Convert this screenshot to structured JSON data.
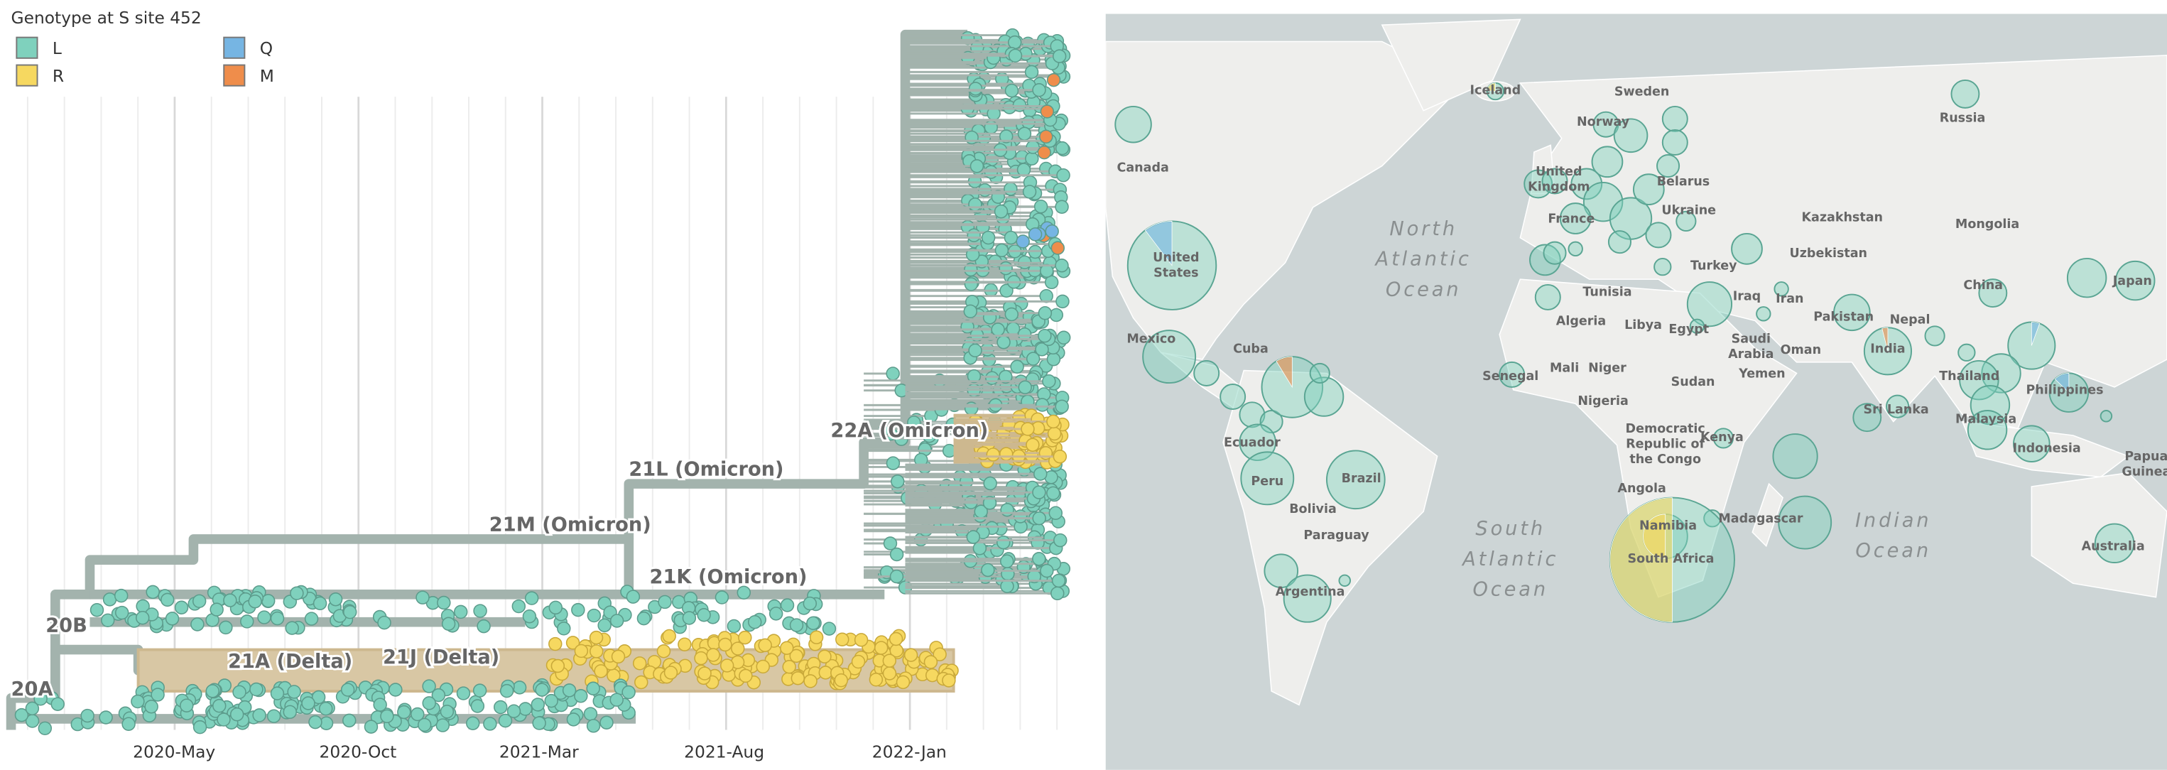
{
  "legend": {
    "title": "Genotype at S site 452",
    "items": [
      {
        "label": "L",
        "color": "#7fd1bd"
      },
      {
        "label": "R",
        "color": "#f6d860"
      },
      {
        "label": "Q",
        "color": "#76b5e3"
      },
      {
        "label": "M",
        "color": "#ef8d4b"
      }
    ]
  },
  "tree": {
    "clades": [
      "20A",
      "20B",
      "21A (Delta)",
      "21J (Delta)",
      "21M (Omicron)",
      "21L (Omicron)",
      "21K (Omicron)",
      "22A (Omicron)"
    ],
    "x_axis": [
      "2020-May",
      "2020-Oct",
      "2021-Mar",
      "2021-Aug",
      "2022-Jan"
    ]
  },
  "map": {
    "countries": [
      [
        "Canada"
      ],
      [
        "United",
        "States"
      ],
      [
        "Mexico"
      ],
      [
        "Cuba"
      ],
      [
        "Ecuador"
      ],
      [
        "Peru"
      ],
      [
        "Brazil"
      ],
      [
        "Bolivia"
      ],
      [
        "Paraguay"
      ],
      [
        "Argentina"
      ],
      [
        "Iceland"
      ],
      [
        "Norway"
      ],
      [
        "Sweden"
      ],
      [
        "Russia"
      ],
      [
        "United",
        "Kingdom"
      ],
      [
        "Belarus"
      ],
      [
        "Ukraine"
      ],
      [
        "France"
      ],
      [
        "Kazakhstan"
      ],
      [
        "Mongolia"
      ],
      [
        "Uzbekistan"
      ],
      [
        "Turkey"
      ],
      [
        "China"
      ],
      [
        "Japan"
      ],
      [
        "Tunisia"
      ],
      [
        "Iraq"
      ],
      [
        "Iran"
      ],
      [
        "Algeria"
      ],
      [
        "Libya"
      ],
      [
        "Egypt"
      ],
      [
        "Saudi",
        "Arabia"
      ],
      [
        "Pakistan"
      ],
      [
        "Nepal"
      ],
      [
        "India"
      ],
      [
        "Oman"
      ],
      [
        "Senegal"
      ],
      [
        "Mali"
      ],
      [
        "Niger"
      ],
      [
        "Sudan"
      ],
      [
        "Yemen"
      ],
      [
        "Thailand"
      ],
      [
        "Philippines"
      ],
      [
        "Nigeria"
      ],
      [
        "Democratic",
        "Republic of",
        "the Congo"
      ],
      [
        "Kenya"
      ],
      [
        "Sri Lanka"
      ],
      [
        "Malaysia"
      ],
      [
        "Indonesia"
      ],
      [
        "Papua",
        "Guinea"
      ],
      [
        "Angola"
      ],
      [
        "Madagascar"
      ],
      [
        "Namibia"
      ],
      [
        "South Africa"
      ],
      [
        "Australia"
      ]
    ],
    "oceans": [
      [
        "North",
        "Atlantic",
        "Ocean"
      ],
      [
        "South",
        "Atlantic",
        "Ocean"
      ],
      [
        "Indian",
        "Ocean"
      ]
    ]
  }
}
